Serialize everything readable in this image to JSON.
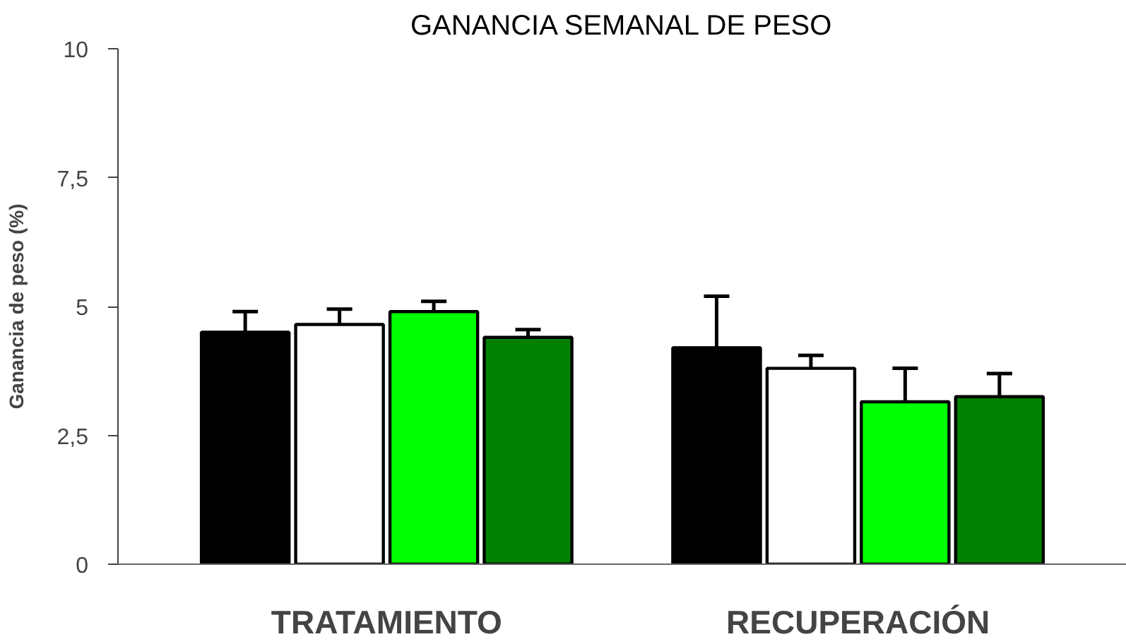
{
  "chart_data": {
    "type": "bar",
    "title": "GANANCIA SEMANAL DE PESO",
    "ylabel": "Ganancia de peso (%)",
    "categories": [
      "TRATAMIENTO",
      "RECUPERACIÓN"
    ],
    "series": [
      {
        "color": "#000000",
        "values": [
          4.5,
          4.2
        ],
        "errors": [
          [
            4.5,
            4.9
          ],
          [
            4.2,
            5.2
          ]
        ]
      },
      {
        "color": "#ffffff",
        "values": [
          4.65,
          3.8
        ],
        "errors": [
          [
            4.65,
            4.95
          ],
          [
            3.8,
            4.05
          ]
        ]
      },
      {
        "color": "#00ff00",
        "values": [
          4.9,
          3.15
        ],
        "errors": [
          [
            4.9,
            5.1
          ],
          [
            3.15,
            3.8
          ]
        ]
      },
      {
        "color": "#008000",
        "values": [
          4.4,
          3.25
        ],
        "errors": [
          [
            4.4,
            4.55
          ],
          [
            3.25,
            3.7
          ]
        ]
      }
    ],
    "ylim": [
      0,
      10
    ],
    "yticks": [
      0,
      {
        "value": 2.5,
        "label": "2,5"
      },
      5,
      {
        "value": 7.5,
        "label": "7,5"
      },
      10
    ],
    "grid": false
  }
}
